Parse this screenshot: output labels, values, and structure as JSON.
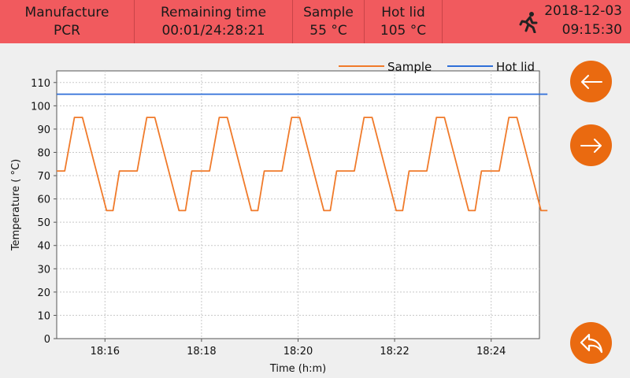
{
  "header": {
    "mode_label": "Manufacture",
    "mode_value": "PCR",
    "remaining_label": "Remaining time",
    "remaining_value": "00:01/24:28:21",
    "sample_label": "Sample",
    "sample_value": "55 °C",
    "hotlid_label": "Hot lid",
    "hotlid_value": "105 °C",
    "date": "2018-12-03",
    "time": "09:15:30",
    "status_icon": "running-person-icon"
  },
  "buttons": {
    "previous_icon": "arrow-left-icon",
    "next_icon": "arrow-right-icon",
    "back_icon": "undo-icon"
  },
  "colors": {
    "header_bg": "#f15a5e",
    "accent": "#ea6a10",
    "sample_line": "#f07a2a",
    "hotlid_line": "#2f6fd8"
  },
  "chart_data": {
    "type": "line",
    "xlabel": "Time (h:m)",
    "ylabel": "Temperature ( °C)",
    "ylim": [
      0,
      115
    ],
    "xlim": [
      "18:15",
      "18:25"
    ],
    "yticks": [
      0,
      10,
      20,
      30,
      40,
      50,
      60,
      70,
      80,
      90,
      100,
      110
    ],
    "xticks": [
      "18:16",
      "18:18",
      "18:20",
      "18:22",
      "18:24"
    ],
    "grid": true,
    "legend_position": "top-right",
    "series": [
      {
        "name": "Sample",
        "color": "#f07a2a",
        "points": [
          [
            "18:15:00",
            72
          ],
          [
            "18:15:10",
            72
          ],
          [
            "18:15:22",
            95
          ],
          [
            "18:15:32",
            95
          ],
          [
            "18:16:02",
            55
          ],
          [
            "18:16:10",
            55
          ],
          [
            "18:16:18",
            72
          ],
          [
            "18:16:40",
            72
          ],
          [
            "18:16:52",
            95
          ],
          [
            "18:17:02",
            95
          ],
          [
            "18:17:32",
            55
          ],
          [
            "18:17:40",
            55
          ],
          [
            "18:17:48",
            72
          ],
          [
            "18:18:10",
            72
          ],
          [
            "18:18:22",
            95
          ],
          [
            "18:18:32",
            95
          ],
          [
            "18:19:02",
            55
          ],
          [
            "18:19:10",
            55
          ],
          [
            "18:19:18",
            72
          ],
          [
            "18:19:40",
            72
          ],
          [
            "18:19:52",
            95
          ],
          [
            "18:20:02",
            95
          ],
          [
            "18:20:32",
            55
          ],
          [
            "18:20:40",
            55
          ],
          [
            "18:20:48",
            72
          ],
          [
            "18:21:10",
            72
          ],
          [
            "18:21:22",
            95
          ],
          [
            "18:21:32",
            95
          ],
          [
            "18:22:02",
            55
          ],
          [
            "18:22:10",
            55
          ],
          [
            "18:22:18",
            72
          ],
          [
            "18:22:40",
            72
          ],
          [
            "18:22:52",
            95
          ],
          [
            "18:23:02",
            95
          ],
          [
            "18:23:32",
            55
          ],
          [
            "18:23:40",
            55
          ],
          [
            "18:23:48",
            72
          ],
          [
            "18:24:10",
            72
          ],
          [
            "18:24:22",
            95
          ],
          [
            "18:24:32",
            95
          ],
          [
            "18:25:02",
            55
          ],
          [
            "18:25:10",
            55
          ]
        ]
      },
      {
        "name": "Hot lid",
        "color": "#2f6fd8",
        "points": [
          [
            "18:15:00",
            105
          ],
          [
            "18:25:10",
            105
          ]
        ]
      }
    ]
  }
}
